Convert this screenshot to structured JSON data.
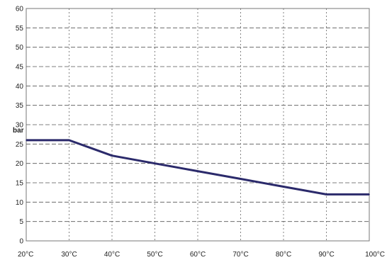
{
  "chart_data": {
    "type": "line",
    "title": "",
    "xlabel": "",
    "ylabel": "bar",
    "x_tick_labels": [
      "20°C",
      "30°C",
      "40°C",
      "50°C",
      "60°C",
      "70°C",
      "80°C",
      "90°C",
      "100°C"
    ],
    "y_tick_labels": [
      "0",
      "5",
      "10",
      "15",
      "20",
      "25",
      "30",
      "35",
      "40",
      "45",
      "50",
      "55",
      "60"
    ],
    "xlim": [
      20,
      100
    ],
    "ylim": [
      0,
      60
    ],
    "grid": true,
    "series": [
      {
        "color": "#2b2a6b",
        "points": [
          [
            20,
            26
          ],
          [
            30,
            26
          ],
          [
            40,
            22
          ],
          [
            50,
            20
          ],
          [
            60,
            18
          ],
          [
            70,
            16
          ],
          [
            80,
            14
          ],
          [
            90,
            12
          ],
          [
            100,
            12
          ]
        ]
      }
    ]
  }
}
